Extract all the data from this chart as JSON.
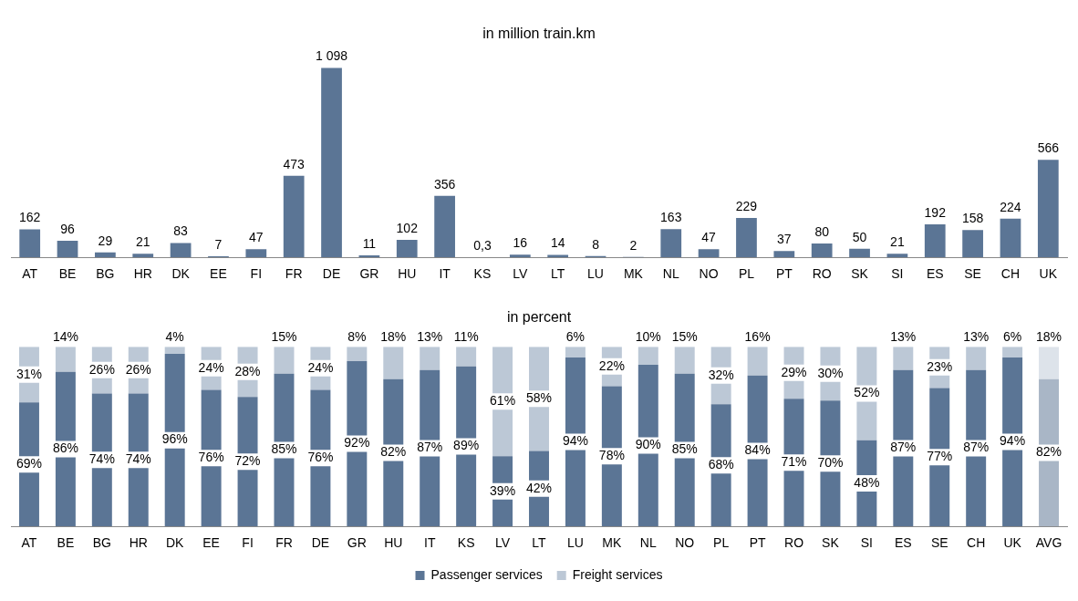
{
  "chart_data": [
    {
      "type": "bar",
      "title": "in million train.km",
      "categories": [
        "AT",
        "BE",
        "BG",
        "HR",
        "DK",
        "EE",
        "FI",
        "FR",
        "DE",
        "GR",
        "HU",
        "IT",
        "KS",
        "LV",
        "LT",
        "LU",
        "MK",
        "NL",
        "NO",
        "PL",
        "PT",
        "RO",
        "SK",
        "SI",
        "ES",
        "SE",
        "CH",
        "UK"
      ],
      "color": "#5b7595",
      "values": [
        162,
        96,
        29,
        21,
        83,
        7,
        47,
        473,
        1098,
        11,
        102,
        356,
        0.3,
        16,
        14,
        8,
        2,
        163,
        47,
        229,
        37,
        80,
        50,
        21,
        192,
        158,
        224,
        566
      ],
      "value_labels": [
        "162",
        "96",
        "29",
        "21",
        "83",
        "7",
        "47",
        "473",
        "1 098",
        "11",
        "102",
        "356",
        "0,3",
        "16",
        "14",
        "8",
        "2",
        "163",
        "47",
        "229",
        "37",
        "80",
        "50",
        "21",
        "192",
        "158",
        "224",
        "566"
      ]
    },
    {
      "type": "bar",
      "title": "in percent",
      "stacked": true,
      "legend": "bottom",
      "categories": [
        "AT",
        "BE",
        "BG",
        "HR",
        "DK",
        "EE",
        "FI",
        "FR",
        "DE",
        "GR",
        "HU",
        "IT",
        "KS",
        "LV",
        "LT",
        "LU",
        "MK",
        "NL",
        "NO",
        "PL",
        "PT",
        "RO",
        "SK",
        "SI",
        "ES",
        "SE",
        "CH",
        "UK",
        "AVG"
      ],
      "series": [
        {
          "name": "Passenger services",
          "color": "#5b7595",
          "colors": [
            "#5b7595",
            "#5b7595",
            "#5b7595",
            "#5b7595",
            "#5b7595",
            "#5b7595",
            "#5b7595",
            "#5b7595",
            "#5b7595",
            "#5b7595",
            "#5b7595",
            "#5b7595",
            "#5b7595",
            "#5b7595",
            "#5b7595",
            "#5b7595",
            "#5b7595",
            "#5b7595",
            "#5b7595",
            "#5b7595",
            "#5b7595",
            "#5b7595",
            "#5b7595",
            "#5b7595",
            "#5b7595",
            "#5b7595",
            "#5b7595",
            "#5b7595",
            "#a9b6c6"
          ],
          "values": [
            69,
            86,
            74,
            74,
            96,
            76,
            72,
            85,
            76,
            92,
            82,
            87,
            89,
            39,
            42,
            94,
            78,
            90,
            85,
            68,
            84,
            71,
            70,
            48,
            87,
            77,
            87,
            94,
            82
          ],
          "value_labels": [
            "69%",
            "86%",
            "74%",
            "74%",
            "96%",
            "76%",
            "72%",
            "85%",
            "76%",
            "92%",
            "82%",
            "87%",
            "89%",
            "39%",
            "42%",
            "94%",
            "78%",
            "90%",
            "85%",
            "68%",
            "84%",
            "71%",
            "70%",
            "48%",
            "87%",
            "77%",
            "87%",
            "94%",
            "82%"
          ]
        },
        {
          "name": "Freight services",
          "color": "#bcc8d6",
          "colors": [
            "#bcc8d6",
            "#bcc8d6",
            "#bcc8d6",
            "#bcc8d6",
            "#bcc8d6",
            "#bcc8d6",
            "#bcc8d6",
            "#bcc8d6",
            "#bcc8d6",
            "#bcc8d6",
            "#bcc8d6",
            "#bcc8d6",
            "#bcc8d6",
            "#bcc8d6",
            "#bcc8d6",
            "#bcc8d6",
            "#bcc8d6",
            "#bcc8d6",
            "#bcc8d6",
            "#bcc8d6",
            "#bcc8d6",
            "#bcc8d6",
            "#bcc8d6",
            "#bcc8d6",
            "#bcc8d6",
            "#bcc8d6",
            "#bcc8d6",
            "#bcc8d6",
            "#dde3ea"
          ],
          "values": [
            31,
            14,
            26,
            26,
            4,
            24,
            28,
            15,
            24,
            8,
            18,
            13,
            11,
            61,
            58,
            6,
            22,
            10,
            15,
            32,
            16,
            29,
            30,
            52,
            13,
            23,
            13,
            6,
            18
          ],
          "value_labels": [
            "31%",
            "14%",
            "26%",
            "26%",
            "4%",
            "24%",
            "28%",
            "15%",
            "24%",
            "8%",
            "18%",
            "13%",
            "11%",
            "61%",
            "58%",
            "6%",
            "22%",
            "10%",
            "15%",
            "32%",
            "16%",
            "29%",
            "30%",
            "52%",
            "13%",
            "23%",
            "13%",
            "6%",
            "18%"
          ]
        }
      ]
    }
  ]
}
